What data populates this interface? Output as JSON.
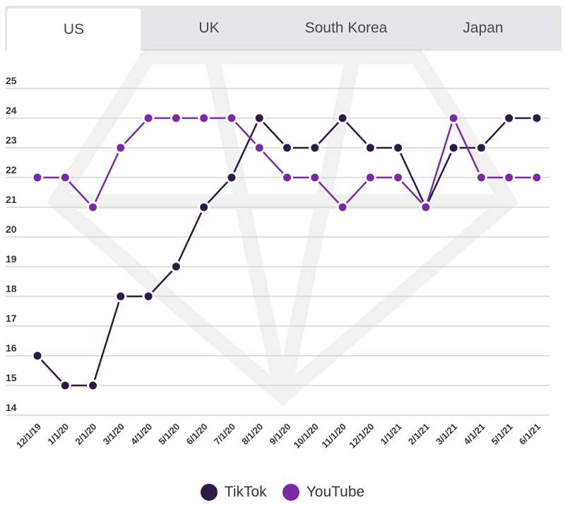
{
  "tabs": [
    {
      "label": "US",
      "active": true
    },
    {
      "label": "UK"
    },
    {
      "label": "South Korea"
    },
    {
      "label": "Japan"
    }
  ],
  "chart_data": {
    "type": "line",
    "title": "",
    "xlabel": "",
    "ylabel": "",
    "ylim": [
      14,
      25
    ],
    "yticks": [
      25,
      24,
      23,
      22,
      21,
      20,
      19,
      18,
      17,
      16,
      15,
      14
    ],
    "grid": true,
    "legend_placement": "bottom",
    "categories": [
      "12/1/19",
      "1/1/20",
      "2/1/20",
      "3/1/20",
      "4/1/20",
      "5/1/20",
      "6/1/20",
      "7/1/20",
      "8/1/20",
      "9/1/20",
      "10/1/20",
      "11/1/20",
      "12/1/20",
      "1/1/21",
      "2/1/21",
      "3/1/21",
      "4/1/21",
      "5/1/21",
      "6/1/21"
    ],
    "series": [
      {
        "name": "TikTok",
        "color": "#2e1a47",
        "values": [
          16,
          15,
          15,
          18,
          18,
          19,
          21,
          22,
          24,
          23,
          23,
          24,
          23,
          23,
          21,
          23,
          23,
          24,
          24
        ]
      },
      {
        "name": "YouTube",
        "color": "#7a2aa6",
        "values": [
          22,
          22,
          21,
          23,
          24,
          24,
          24,
          24,
          23,
          22,
          22,
          21,
          22,
          22,
          21,
          24,
          22,
          22,
          22
        ]
      }
    ]
  }
}
